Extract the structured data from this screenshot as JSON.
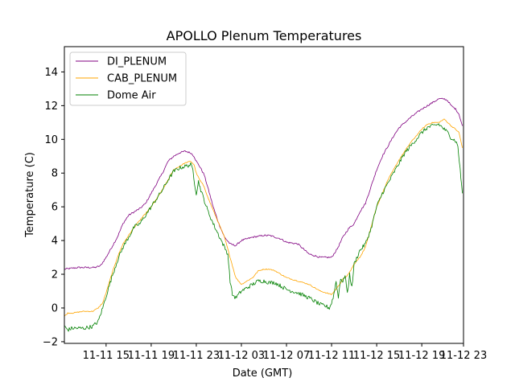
{
  "chart_data": {
    "type": "line",
    "title": "APOLLO Plenum Temperatures",
    "xlabel": "Date (GMT)",
    "ylabel": "Temperature (C)",
    "xlim": [
      11.3,
      46.7
    ],
    "ylim": [
      -2.1,
      15.5
    ],
    "x_unit": "hours since 11-11 00:00 GMT",
    "xticks": [
      {
        "value": 15,
        "label": "11-11 15"
      },
      {
        "value": 19,
        "label": "11-11 19"
      },
      {
        "value": 23,
        "label": "11-11 23"
      },
      {
        "value": 27,
        "label": "11-12 03"
      },
      {
        "value": 31,
        "label": "11-12 07"
      },
      {
        "value": 35,
        "label": "11-12 11"
      },
      {
        "value": 39,
        "label": "11-12 15"
      },
      {
        "value": 43,
        "label": "11-12 19"
      },
      {
        "value": 47,
        "label": "11-12 23"
      }
    ],
    "yticks": [
      {
        "value": -2,
        "label": "−2"
      },
      {
        "value": 0,
        "label": "0"
      },
      {
        "value": 2,
        "label": "2"
      },
      {
        "value": 4,
        "label": "4"
      },
      {
        "value": 6,
        "label": "6"
      },
      {
        "value": 8,
        "label": "8"
      },
      {
        "value": 10,
        "label": "10"
      },
      {
        "value": 12,
        "label": "12"
      },
      {
        "value": 14,
        "label": "14"
      }
    ],
    "legend_position": "top-left",
    "series": [
      {
        "name": "DI_PLENUM",
        "color": "#800080",
        "x": [
          11.3,
          12.5,
          13.2,
          14.0,
          14.5,
          15.0,
          15.5,
          16.0,
          16.5,
          17.0,
          17.5,
          18.0,
          18.5,
          19.0,
          19.5,
          20.0,
          20.5,
          21.0,
          21.5,
          22.0,
          22.5,
          22.8,
          23.0,
          23.3,
          23.7,
          24.0,
          24.5,
          25.0,
          25.5,
          26.0,
          26.5,
          27.0,
          28.0,
          29.0,
          29.5,
          30.0,
          30.5,
          31.0,
          32.0,
          32.5,
          33.0,
          34.0,
          35.0,
          35.5,
          36.0,
          36.5,
          37.0,
          37.5,
          38.0,
          38.5,
          39.0,
          39.5,
          40.0,
          40.5,
          41.0,
          41.5,
          42.0,
          43.0,
          44.0,
          44.5,
          45.0,
          45.3,
          45.6,
          46.0,
          46.3,
          46.6
        ],
        "y": [
          2.3,
          2.4,
          2.4,
          2.4,
          2.5,
          3.0,
          3.6,
          4.2,
          5.0,
          5.5,
          5.7,
          5.9,
          6.2,
          6.8,
          7.4,
          8.0,
          8.7,
          9.0,
          9.2,
          9.3,
          9.2,
          9.0,
          8.7,
          8.4,
          7.9,
          7.2,
          6.0,
          5.0,
          4.2,
          3.8,
          3.7,
          4.0,
          4.2,
          4.3,
          4.3,
          4.2,
          4.1,
          3.9,
          3.8,
          3.5,
          3.2,
          3.0,
          3.0,
          3.5,
          4.2,
          4.7,
          5.0,
          5.7,
          6.2,
          7.2,
          8.2,
          9.0,
          9.6,
          10.2,
          10.7,
          11.0,
          11.3,
          11.8,
          12.2,
          12.4,
          12.4,
          12.3,
          12.0,
          11.8,
          11.5,
          10.8
        ]
      },
      {
        "name": "CAB_PLENUM",
        "color": "#ffa500",
        "x": [
          11.3,
          11.6,
          12.0,
          13.0,
          13.8,
          14.3,
          14.7,
          15.0,
          15.5,
          16.0,
          16.5,
          17.0,
          17.5,
          18.0,
          18.5,
          19.0,
          19.5,
          20.0,
          20.5,
          21.0,
          21.5,
          22.0,
          22.5,
          22.8,
          23.0,
          23.3,
          23.7,
          24.0,
          24.5,
          25.0,
          25.5,
          26.0,
          26.5,
          27.0,
          28.0,
          28.5,
          29.0,
          29.5,
          30.0,
          30.5,
          31.0,
          32.0,
          33.0,
          34.0,
          34.5,
          35.0,
          35.5,
          36.0,
          36.5,
          37.0,
          37.5,
          38.0,
          38.5,
          39.0,
          39.5,
          40.0,
          40.5,
          41.0,
          41.5,
          42.0,
          42.5,
          43.0,
          43.5,
          44.0,
          44.5,
          45.0,
          45.3,
          45.6,
          46.0,
          46.3,
          46.6
        ],
        "y": [
          -0.5,
          -0.3,
          -0.3,
          -0.2,
          -0.2,
          0.0,
          0.3,
          0.9,
          2.0,
          3.0,
          3.8,
          4.3,
          4.8,
          5.2,
          5.6,
          6.0,
          6.5,
          7.0,
          7.6,
          8.2,
          8.4,
          8.6,
          8.7,
          8.5,
          8.0,
          7.6,
          7.2,
          6.6,
          5.8,
          5.0,
          4.2,
          3.0,
          1.8,
          1.4,
          1.8,
          2.2,
          2.3,
          2.3,
          2.2,
          2.0,
          1.8,
          1.6,
          1.4,
          1.0,
          0.9,
          0.8,
          1.2,
          1.7,
          2.0,
          2.6,
          3.0,
          3.6,
          4.8,
          6.0,
          6.8,
          7.6,
          8.2,
          8.8,
          9.3,
          9.8,
          10.2,
          10.6,
          10.9,
          11.0,
          11.0,
          11.2,
          11.0,
          10.8,
          10.6,
          10.4,
          9.5
        ]
      },
      {
        "name": "Dome Air",
        "color": "#008000",
        "x": [
          11.3,
          11.6,
          12.0,
          13.0,
          13.8,
          14.3,
          14.7,
          15.0,
          15.5,
          16.0,
          16.5,
          17.0,
          17.5,
          18.0,
          18.5,
          19.0,
          19.5,
          20.0,
          20.5,
          21.0,
          21.5,
          22.0,
          22.5,
          22.7,
          22.85,
          23.0,
          23.2,
          23.4,
          23.6,
          24.0,
          24.5,
          25.0,
          25.5,
          25.8,
          26.0,
          26.2,
          26.5,
          27.0,
          28.0,
          28.5,
          29.0,
          29.5,
          30.0,
          30.5,
          31.0,
          32.0,
          33.0,
          34.0,
          34.5,
          34.8,
          35.0,
          35.2,
          35.4,
          35.6,
          35.8,
          36.0,
          36.2,
          36.4,
          36.6,
          36.8,
          37.0,
          37.5,
          38.0,
          38.5,
          39.0,
          39.5,
          40.0,
          40.5,
          41.0,
          41.5,
          42.0,
          42.5,
          43.0,
          43.5,
          44.0,
          44.5,
          45.0,
          45.3,
          45.6,
          46.0,
          46.2,
          46.4,
          46.6
        ],
        "y": [
          -1.1,
          -1.3,
          -1.2,
          -1.2,
          -1.1,
          -0.8,
          0.0,
          0.7,
          1.8,
          2.8,
          3.6,
          4.2,
          4.8,
          5.0,
          5.5,
          6.0,
          6.5,
          7.0,
          7.6,
          8.1,
          8.3,
          8.4,
          8.5,
          8.2,
          7.4,
          6.8,
          7.5,
          7.0,
          6.6,
          5.8,
          5.0,
          4.3,
          3.6,
          3.2,
          1.6,
          0.8,
          0.6,
          1.0,
          1.4,
          1.6,
          1.6,
          1.5,
          1.5,
          1.3,
          1.1,
          0.9,
          0.6,
          0.2,
          0.1,
          0.0,
          0.3,
          0.8,
          1.6,
          0.6,
          1.8,
          1.5,
          2.0,
          0.8,
          2.0,
          1.2,
          2.6,
          3.4,
          3.8,
          4.7,
          6.0,
          6.8,
          7.4,
          8.0,
          8.6,
          9.2,
          9.6,
          10.0,
          10.4,
          10.7,
          10.8,
          10.9,
          10.6,
          10.4,
          10.1,
          9.9,
          9.6,
          8.2,
          6.8
        ]
      }
    ]
  }
}
